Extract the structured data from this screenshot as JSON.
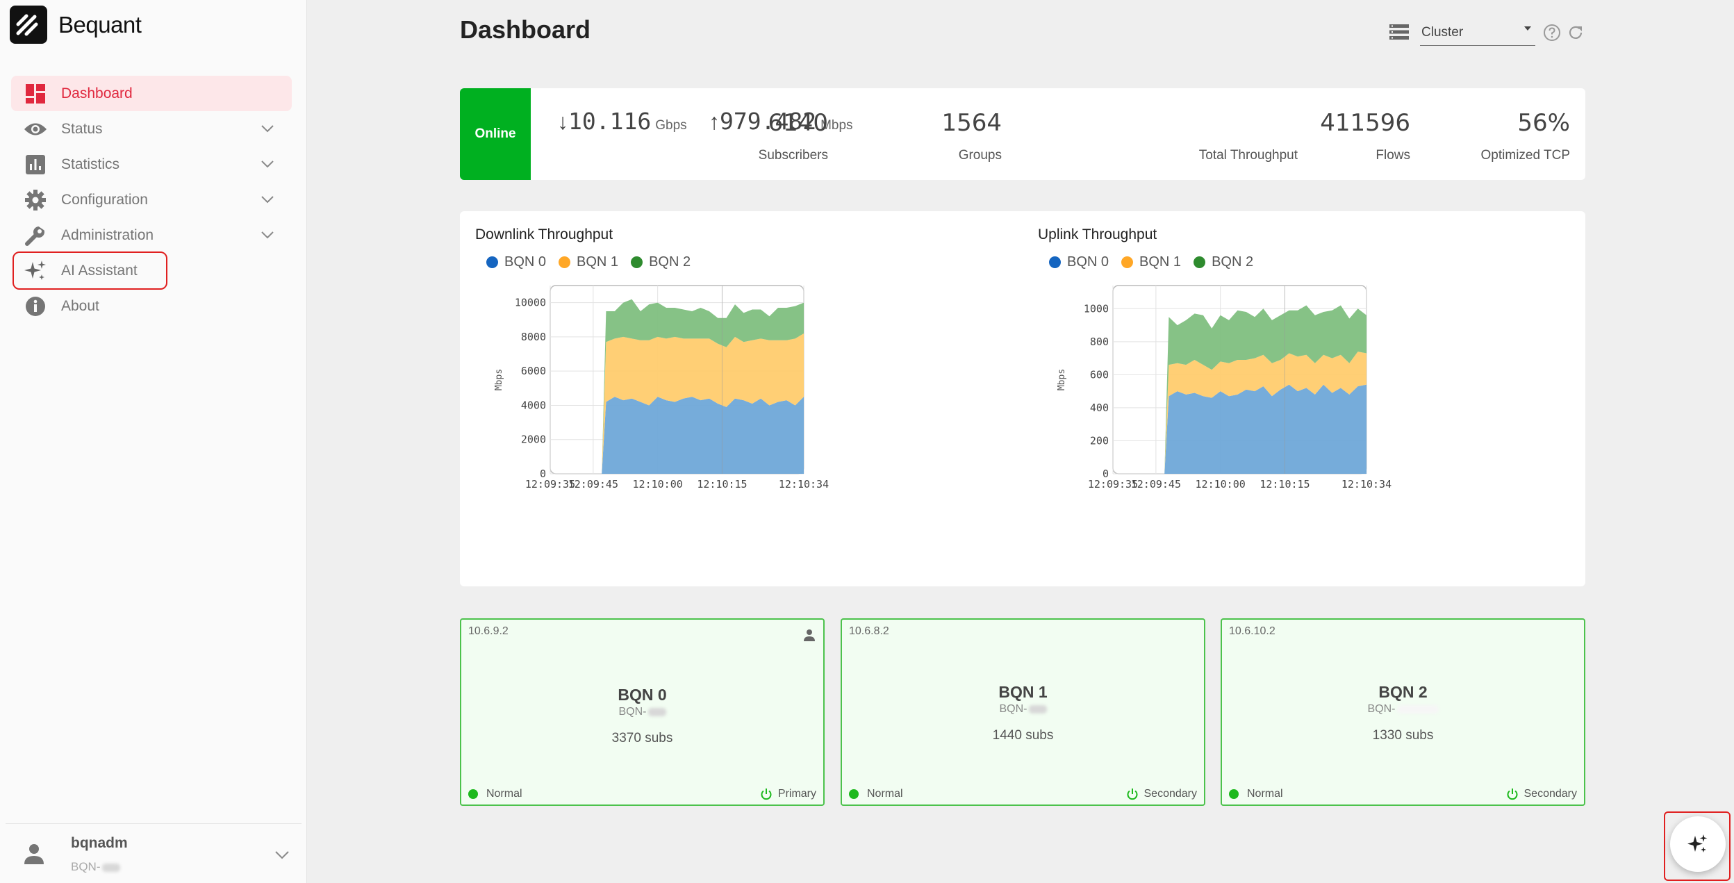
{
  "brand": {
    "name": "Bequant"
  },
  "nav": {
    "dashboard": "Dashboard",
    "status": "Status",
    "statistics": "Statistics",
    "configuration": "Configuration",
    "administration": "Administration",
    "ai_assistant": "AI Assistant",
    "about": "About"
  },
  "user": {
    "name": "bqnadm",
    "host_prefix": "BQN-"
  },
  "header": {
    "title": "Dashboard",
    "cluster_label": "Cluster"
  },
  "summary": {
    "status": "Online",
    "downlink_value": "10.116",
    "downlink_unit": "Gbps",
    "uplink_value": "979.482",
    "uplink_unit": "Mbps",
    "throughput_label": "Total Throughput",
    "subscribers": "6140",
    "subscribers_label": "Subscribers",
    "groups": "1564",
    "groups_label": "Groups",
    "flows": "411596",
    "flows_label": "Flows",
    "optimized_tcp": "56%",
    "optimized_tcp_label": "Optimized TCP"
  },
  "colors": {
    "bqn0": "#1565c0",
    "bqn1": "#ffa726",
    "bqn2": "#2e8b2e",
    "accent": "#e0283e",
    "online": "#00b020"
  },
  "charts": {
    "downlink": {
      "title": "Downlink Throughput",
      "ylabel": "Mbps"
    },
    "uplink": {
      "title": "Uplink Throughput",
      "ylabel": "Mbps"
    },
    "legend": [
      "BQN 0",
      "BQN 1",
      "BQN 2"
    ]
  },
  "chart_data": [
    {
      "type": "area",
      "title": "Downlink Throughput",
      "ylabel": "Mbps",
      "stacked": true,
      "ylim": [
        0,
        11000
      ],
      "yticks": [
        0,
        2000,
        4000,
        6000,
        8000,
        10000
      ],
      "xticks": [
        "12:09:35",
        "12:09:45",
        "12:10:00",
        "12:10:15",
        "12:10:34"
      ],
      "x": [
        "12:09:35",
        "12:09:47",
        "12:09:48",
        "12:09:50",
        "12:09:52",
        "12:09:54",
        "12:09:56",
        "12:09:58",
        "12:10:00",
        "12:10:02",
        "12:10:04",
        "12:10:06",
        "12:10:08",
        "12:10:10",
        "12:10:12",
        "12:10:14",
        "12:10:16",
        "12:10:18",
        "12:10:20",
        "12:10:22",
        "12:10:24",
        "12:10:26",
        "12:10:28",
        "12:10:30",
        "12:10:32",
        "12:10:34"
      ],
      "series": [
        {
          "name": "BQN 0",
          "values": [
            0,
            0,
            4200,
            4500,
            4300,
            4400,
            4200,
            4000,
            4500,
            4300,
            4200,
            4400,
            4500,
            4300,
            4400,
            4100,
            3900,
            4400,
            4300,
            4100,
            4400,
            4000,
            4200,
            4300,
            4000,
            4500
          ]
        },
        {
          "name": "BQN 1",
          "values": [
            0,
            0,
            3500,
            3400,
            3700,
            3500,
            3600,
            3800,
            3500,
            3600,
            3800,
            3500,
            3400,
            3600,
            3500,
            3500,
            3500,
            3600,
            3400,
            3700,
            3500,
            3800,
            3600,
            3500,
            3900,
            3700
          ]
        },
        {
          "name": "BQN 2",
          "values": [
            0,
            0,
            1800,
            1600,
            2000,
            2300,
            1700,
            2100,
            2000,
            1800,
            1700,
            1700,
            1600,
            1800,
            1600,
            1500,
            1700,
            1900,
            1700,
            1800,
            1700,
            1400,
            1900,
            1900,
            1900,
            1800
          ]
        }
      ]
    },
    {
      "type": "area",
      "title": "Uplink Throughput",
      "ylabel": "Mbps",
      "stacked": true,
      "ylim": [
        0,
        1140
      ],
      "yticks": [
        0,
        200,
        400,
        600,
        800,
        1000
      ],
      "xticks": [
        "12:09:35",
        "12:09:45",
        "12:10:00",
        "12:10:15",
        "12:10:34"
      ],
      "x": [
        "12:09:35",
        "12:09:47",
        "12:09:48",
        "12:09:50",
        "12:09:52",
        "12:09:54",
        "12:09:56",
        "12:09:58",
        "12:10:00",
        "12:10:02",
        "12:10:04",
        "12:10:06",
        "12:10:08",
        "12:10:10",
        "12:10:12",
        "12:10:14",
        "12:10:16",
        "12:10:18",
        "12:10:20",
        "12:10:22",
        "12:10:24",
        "12:10:26",
        "12:10:28",
        "12:10:30",
        "12:10:32",
        "12:10:34"
      ],
      "series": [
        {
          "name": "BQN 0",
          "values": [
            0,
            0,
            470,
            500,
            480,
            490,
            470,
            460,
            500,
            470,
            480,
            510,
            500,
            530,
            470,
            510,
            540,
            500,
            520,
            480,
            540,
            490,
            520,
            480,
            530,
            540
          ]
        },
        {
          "name": "BQN 1",
          "values": [
            0,
            0,
            190,
            170,
            180,
            200,
            190,
            170,
            180,
            200,
            210,
            180,
            200,
            190,
            200,
            180,
            190,
            210,
            200,
            190,
            180,
            210,
            200,
            190,
            210,
            190
          ]
        },
        {
          "name": "BQN 2",
          "values": [
            0,
            0,
            290,
            230,
            270,
            280,
            300,
            250,
            280,
            260,
            300,
            290,
            250,
            280,
            260,
            270,
            260,
            280,
            300,
            290,
            260,
            290,
            300,
            270,
            260,
            230
          ]
        }
      ]
    }
  ],
  "nodes": [
    {
      "ip": "10.6.9.2",
      "name": "BQN 0",
      "host": "BQN-",
      "subs": "3370 subs",
      "state": "Normal",
      "role": "Primary"
    },
    {
      "ip": "10.6.8.2",
      "name": "BQN 1",
      "host": "BQN-",
      "subs": "1440 subs",
      "state": "Normal",
      "role": "Secondary"
    },
    {
      "ip": "10.6.10.2",
      "name": "BQN 2",
      "host": "BQN-",
      "subs": "1330 subs",
      "state": "Normal",
      "role": "Secondary"
    }
  ]
}
